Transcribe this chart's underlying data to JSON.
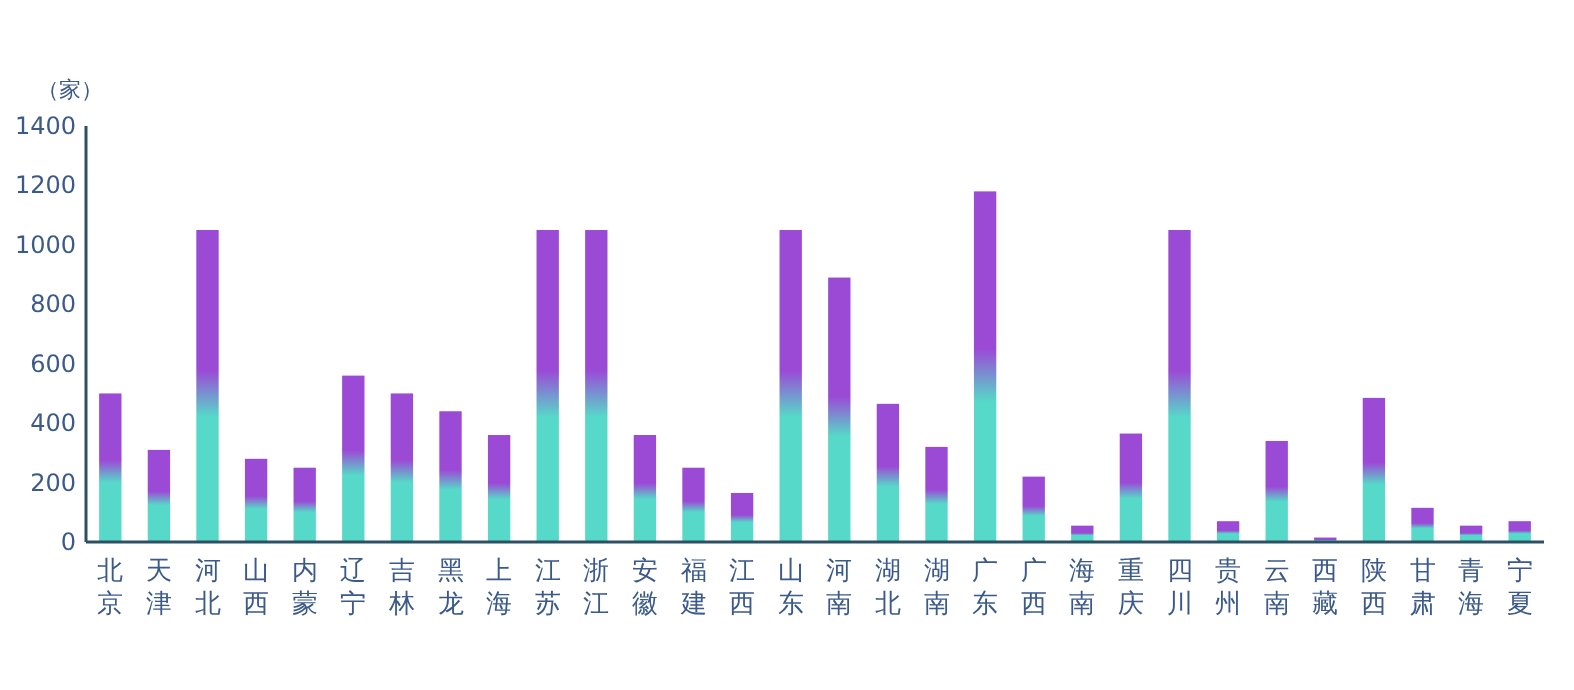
{
  "chart_data": {
    "type": "bar",
    "ylabel": "（家）",
    "categories": [
      "北京",
      "天津",
      "河北",
      "山西",
      "内蒙",
      "辽宁",
      "吉林",
      "黑龙",
      "上海",
      "江苏",
      "浙江",
      "安徽",
      "福建",
      "江西",
      "山东",
      "河南",
      "湖北",
      "湖南",
      "广东",
      "广西",
      "海南",
      "重庆",
      "四川",
      "贵州",
      "云南",
      "西藏",
      "陕西",
      "甘肃",
      "青海",
      "宁夏"
    ],
    "series": [
      {
        "color": "#9b4ad6",
        "values": [
          500,
          310,
          1050,
          280,
          250,
          560,
          500,
          440,
          360,
          1050,
          1050,
          360,
          250,
          165,
          1050,
          890,
          465,
          320,
          1180,
          220,
          55,
          365,
          1050,
          70,
          340,
          15,
          485,
          115,
          55,
          70
        ]
      }
    ],
    "ylim": [
      0,
      1400
    ],
    "yticks": [
      0,
      200,
      400,
      600,
      800,
      1000,
      1200,
      1400
    ],
    "grid": false
  }
}
